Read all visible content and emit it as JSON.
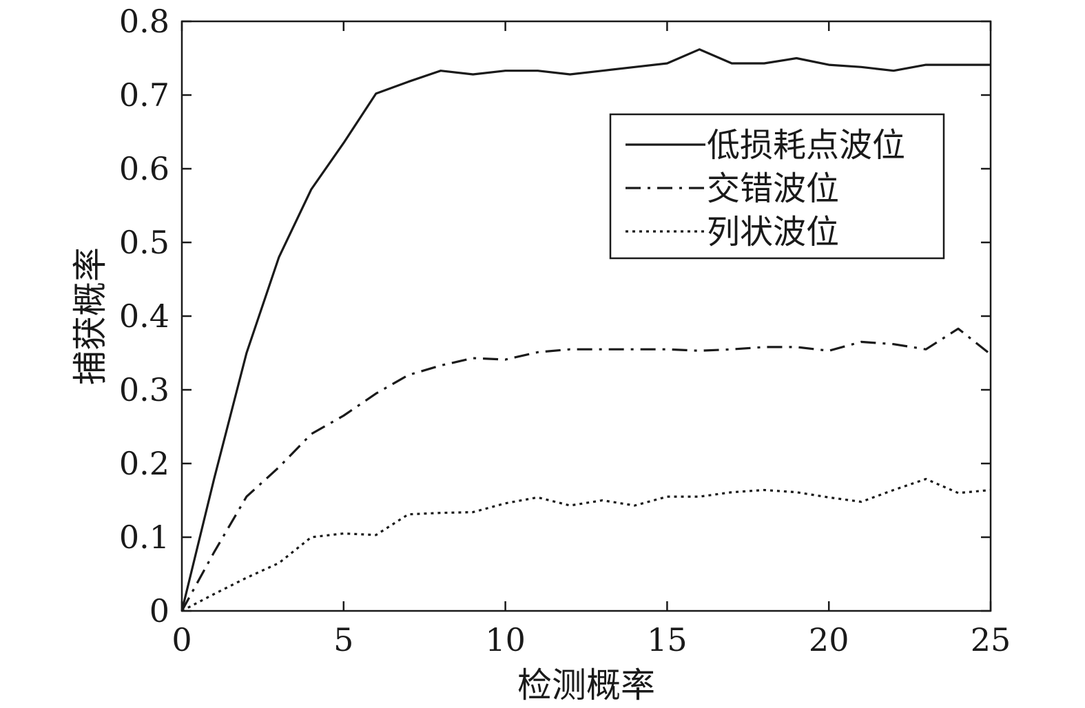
{
  "chart_data": {
    "type": "line",
    "title": "",
    "xlabel": "检测概率",
    "ylabel": "捕获概率",
    "xlim": [
      0,
      25
    ],
    "ylim": [
      0,
      0.8
    ],
    "grid": false,
    "legend_position": "top-right",
    "xticks": [
      "0",
      "5",
      "10",
      "15",
      "20",
      "25"
    ],
    "yticks": [
      "0",
      "0.1",
      "0.2",
      "0.3",
      "0.4",
      "0.5",
      "0.6",
      "0.7",
      "0.8"
    ],
    "x": [
      0,
      1,
      2,
      3,
      4,
      5,
      6,
      7,
      8,
      9,
      10,
      11,
      12,
      13,
      14,
      15,
      16,
      17,
      18,
      19,
      20,
      21,
      22,
      23,
      24,
      25
    ],
    "series": [
      {
        "name": "低损耗点波位",
        "line_style": "solid",
        "color": "#1a1a1a",
        "values": [
          0,
          0.18,
          0.35,
          0.48,
          0.572,
          0.635,
          0.702,
          0.718,
          0.733,
          0.728,
          0.733,
          0.733,
          0.728,
          0.733,
          0.738,
          0.743,
          0.762,
          0.743,
          0.743,
          0.75,
          0.741,
          0.738,
          0.733,
          0.741,
          0.741,
          0.741
        ]
      },
      {
        "name": "交错波位",
        "line_style": "dashdot",
        "color": "#1a1a1a",
        "values": [
          0,
          0.08,
          0.155,
          0.195,
          0.24,
          0.265,
          0.295,
          0.32,
          0.333,
          0.343,
          0.341,
          0.351,
          0.355,
          0.355,
          0.355,
          0.355,
          0.353,
          0.355,
          0.358,
          0.358,
          0.353,
          0.365,
          0.362,
          0.355,
          0.383,
          0.348
        ]
      },
      {
        "name": "列状波位",
        "line_style": "dotted",
        "color": "#1a1a1a",
        "values": [
          0,
          0.023,
          0.045,
          0.065,
          0.1,
          0.105,
          0.103,
          0.131,
          0.133,
          0.134,
          0.146,
          0.154,
          0.143,
          0.15,
          0.143,
          0.155,
          0.155,
          0.161,
          0.164,
          0.161,
          0.154,
          0.148,
          0.164,
          0.179,
          0.16,
          0.164
        ]
      }
    ]
  }
}
